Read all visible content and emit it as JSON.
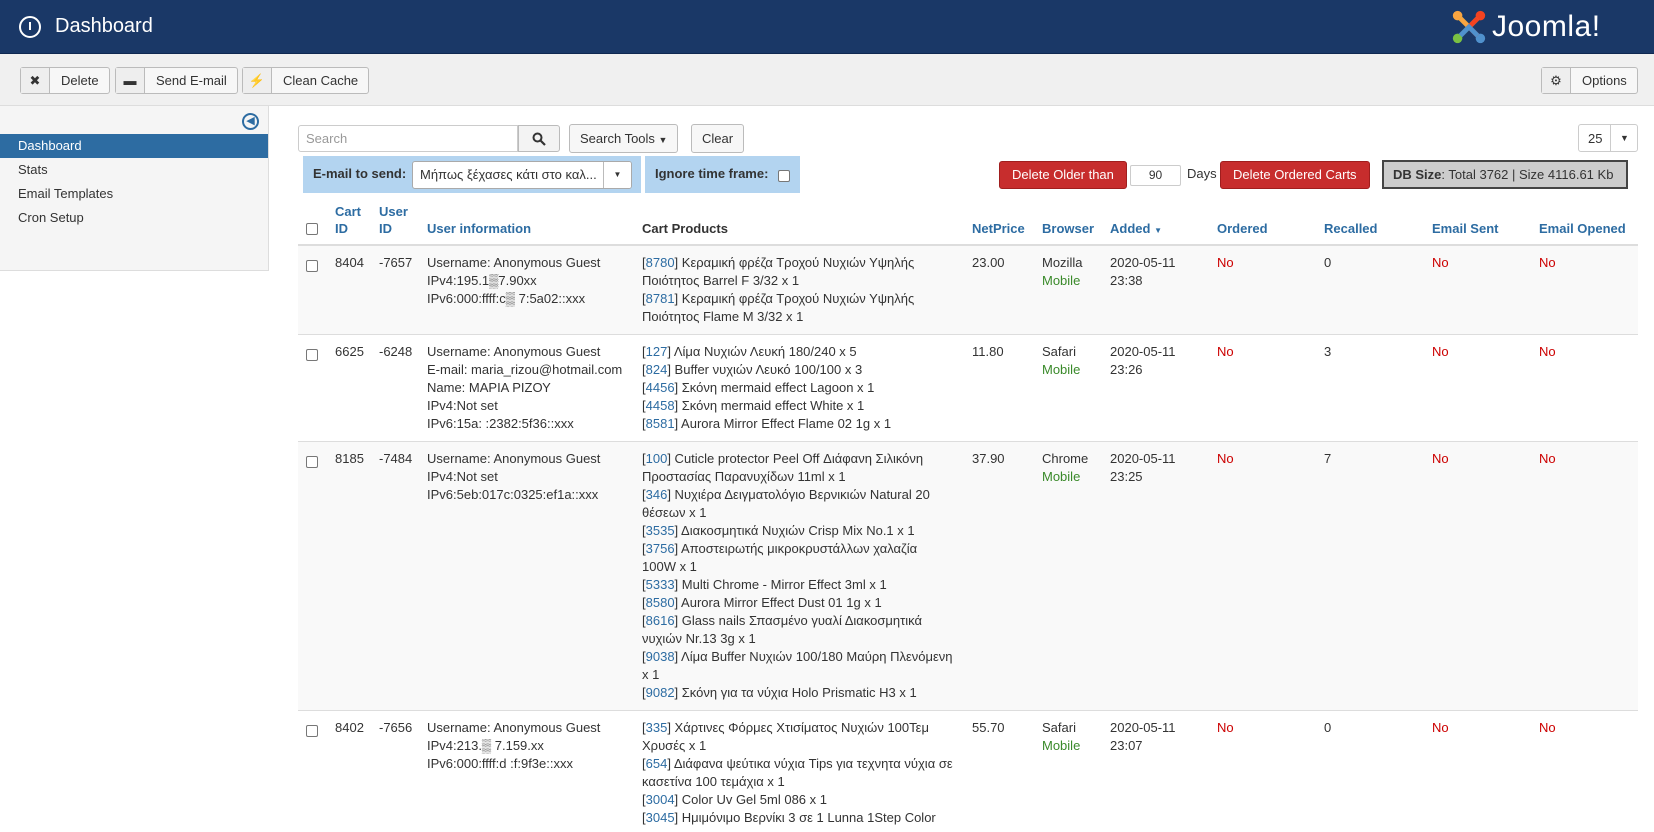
{
  "header": {
    "title": "Dashboard",
    "brand": "Joomla!"
  },
  "toolbar": {
    "delete": "Delete",
    "send_email": "Send E-mail",
    "clean_cache": "Clean Cache",
    "options": "Options"
  },
  "sidebar": {
    "items": [
      {
        "label": "Dashboard",
        "active": true
      },
      {
        "label": "Stats"
      },
      {
        "label": "Email Templates"
      },
      {
        "label": "Cron Setup"
      }
    ]
  },
  "filters": {
    "search_placeholder": "Search",
    "search_tools": "Search Tools",
    "clear": "Clear",
    "limit": "25",
    "email_to_send_label": "E-mail to send:",
    "email_to_send_value": "Μήπως ξέχασες κάτι στο καλ...",
    "ignore_time_label": "Ignore time frame:",
    "delete_older": "Delete Older than",
    "days_value": "90",
    "days_label": "Days",
    "delete_ordered": "Delete Ordered Carts",
    "db_size_label": "DB Size",
    "db_size_value": ": Total 3762 | Size 4116.61 Kb"
  },
  "table": {
    "headers": {
      "cart_id_1": "Cart",
      "cart_id_2": "ID",
      "user_id_1": "User",
      "user_id_2": "ID",
      "user_info": "User information",
      "cart_products": "Cart Products",
      "netprice": "NetPrice",
      "browser": "Browser",
      "added": "Added",
      "ordered": "Ordered",
      "recalled": "Recalled",
      "email_sent": "Email Sent",
      "email_opened": "Email Opened"
    },
    "rows": [
      {
        "cart_id": "8404",
        "user_id": "-7657",
        "info": [
          "Username: Anonymous Guest",
          "IPv4:195.1▒7.90xx",
          "IPv6:000:ffff:c▒ 7:5a02::xxx"
        ],
        "products": [
          {
            "id": "8780",
            "text": "] Κεραμική φρέζα Τροχού Νυχιών Υψηλής",
            "cont": "Ποιότητος Barrel F 3/32 x 1"
          },
          {
            "id": "8781",
            "text": "] Κεραμική φρέζα Τροχού Νυχιών Υψηλής",
            "cont": "Ποιότητος Flame M 3/32 x 1"
          }
        ],
        "price": "23.00",
        "browser": "Mozilla",
        "device": "Mobile",
        "date": "2020-05-11",
        "time": "23:38",
        "ordered": "No",
        "recalled": "0",
        "sent": "No",
        "opened": "No"
      },
      {
        "cart_id": "6625",
        "user_id": "-6248",
        "info": [
          "Username: Anonymous Guest",
          "E-mail: maria_rizou@hotmail.com",
          "Name: ΜΑΡΙΑ ΡΙΖΟΥ",
          "IPv4:Not set",
          "IPv6:15a:      :2382:5f36::xxx"
        ],
        "products": [
          {
            "id": "127",
            "text": "] Λίμα Νυχιών Λευκή 180/240 x 5"
          },
          {
            "id": "824",
            "text": "] Buffer νυχιών Λευκό 100/100 x 3"
          },
          {
            "id": "4456",
            "text": "] Σκόνη mermaid effect Lagoon x 1"
          },
          {
            "id": "4458",
            "text": "] Σκόνη mermaid effect White x 1"
          },
          {
            "id": "8581",
            "text": "] Aurora Mirror Effect Flame 02 1g x 1"
          }
        ],
        "price": "11.80",
        "browser": "Safari",
        "device": "Mobile",
        "date": "2020-05-11",
        "time": "23:26",
        "ordered": "No",
        "recalled": "3",
        "sent": "No",
        "opened": "No"
      },
      {
        "cart_id": "8185",
        "user_id": "-7484",
        "info": [
          "Username: Anonymous Guest",
          "IPv4:Not set",
          "IPv6:5eb:017c:0325:ef1a::xxx"
        ],
        "products": [
          {
            "id": "100",
            "text": "] Cuticle protector Peel Off Διάφανη Σιλικόνη",
            "cont": "Προστασίας Παρανυχίδων 11ml x 1"
          },
          {
            "id": "346",
            "text": "] Νυχιέρα Δειγματολόγιο Βερνικιών Natural 20",
            "cont": "θέσεων x 1"
          },
          {
            "id": "3535",
            "text": "] Διακοσμητικά Νυχιών Crisp Mix No.1 x 1"
          },
          {
            "id": "3756",
            "text": "] Αποστειρωτής μικροκρυστάλλων χαλαζία",
            "cont": "100W x 1"
          },
          {
            "id": "5333",
            "text": "] Multi Chrome - Mirror Effect 3ml x 1"
          },
          {
            "id": "8580",
            "text": "] Aurora Mirror Effect Dust 01 1g x 1"
          },
          {
            "id": "8616",
            "text": "] Glass nails Σπασμένο γυαλί Διακοσμητικά",
            "cont": "νυχιών Nr.13 3g x 1"
          },
          {
            "id": "9038",
            "text": "] Λίμα Buffer Νυχιών 100/180 Μαύρη Πλενόμενη",
            "cont": "x 1"
          },
          {
            "id": "9082",
            "text": "] Σκόνη για τα νύχια Holo Prismatic H3 x 1"
          }
        ],
        "price": "37.90",
        "browser": "Chrome",
        "device": "Mobile",
        "date": "2020-05-11",
        "time": "23:25",
        "ordered": "No",
        "recalled": "7",
        "sent": "No",
        "opened": "No"
      },
      {
        "cart_id": "8402",
        "user_id": "-7656",
        "info": [
          "Username: Anonymous Guest",
          "IPv4:213.▒ 7.159.xx",
          "IPv6:000:ffff:d  :f:9f3e::xxx"
        ],
        "products": [
          {
            "id": "335",
            "text": "] Χάρτινες Φόρμες Χτισίματος Νυχιών 100Τεμ",
            "cont": "Χρυσές x 1"
          },
          {
            "id": "654",
            "text": "] Διάφανα ψεύτικα νύχια Tips για τεχνητα νύχια σε",
            "cont": "κασετίνα 100 τεμάχια x 1"
          },
          {
            "id": "3004",
            "text": "] Color Uv Gel 5ml 086 x 1"
          },
          {
            "id": "3045",
            "text": "] Ημιμόνιμο Βερνίκι 3 σε 1 Lunna 1Step Color"
          }
        ],
        "price": "55.70",
        "browser": "Safari",
        "device": "Mobile",
        "date": "2020-05-11",
        "time": "23:07",
        "ordered": "No",
        "recalled": "0",
        "sent": "No",
        "opened": "No"
      }
    ]
  }
}
